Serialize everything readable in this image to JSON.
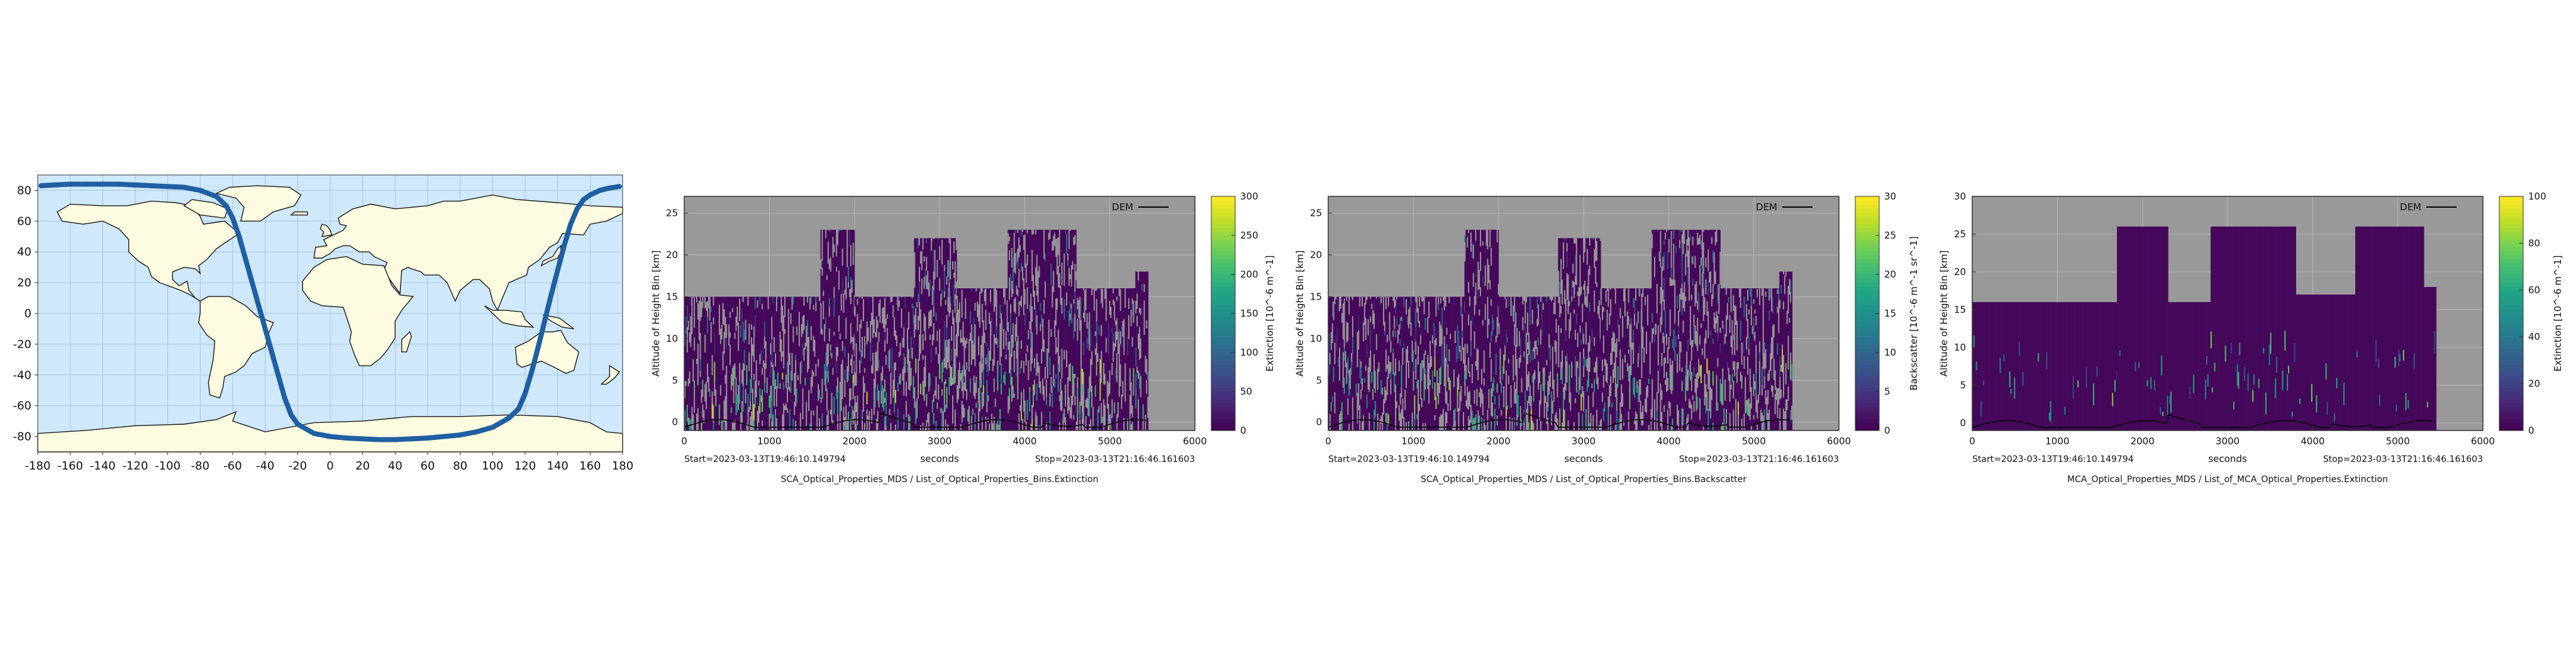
{
  "map": {
    "x_ticks": [
      "-180",
      "-160",
      "-140",
      "-120",
      "-100",
      "-80",
      "-60",
      "-40",
      "-20",
      "0",
      "20",
      "40",
      "60",
      "80",
      "100",
      "120",
      "140",
      "160",
      "180"
    ],
    "y_ticks": [
      "80",
      "60",
      "40",
      "20",
      "0",
      "-20",
      "-40",
      "-60",
      "-80"
    ],
    "colors": {
      "ocean": "#cfe8fb",
      "land": "#fdfbe0",
      "coast": "#1a1a1a",
      "track": "#1f5fa3",
      "grid": "#a8c4da"
    }
  },
  "plots": [
    {
      "ylabel": "Altitude of Height Bin [km]",
      "xlabel": "seconds",
      "start_text": "Start=2023-03-13T19:46:10.149794",
      "stop_text": "Stop=2023-03-13T21:16:46.161603",
      "title": "SCA_Optical_Properties_MDS / List_of_Optical_Properties_Bins.Extinction",
      "legend": "DEM",
      "cbar_label": "Extinction [10^-6 m^-1]",
      "x_ticks": [
        "0",
        "1000",
        "2000",
        "3000",
        "4000",
        "5000",
        "6000"
      ],
      "y_ticks": [
        "0",
        "5",
        "10",
        "15",
        "20",
        "25"
      ],
      "cbar_ticks": [
        "0",
        "50",
        "100",
        "150",
        "200",
        "250",
        "300"
      ]
    },
    {
      "ylabel": "Altitude of Height Bin [km]",
      "xlabel": "seconds",
      "start_text": "Start=2023-03-13T19:46:10.149794",
      "stop_text": "Stop=2023-03-13T21:16:46.161603",
      "title": "SCA_Optical_Properties_MDS / List_of_Optical_Properties_Bins.Backscatter",
      "legend": "DEM",
      "cbar_label": "Backscatter [10^-6 m^-1 sr^-1]",
      "x_ticks": [
        "0",
        "1000",
        "2000",
        "3000",
        "4000",
        "5000",
        "6000"
      ],
      "y_ticks": [
        "0",
        "5",
        "10",
        "15",
        "20",
        "25"
      ],
      "cbar_ticks": [
        "0",
        "5",
        "10",
        "15",
        "20",
        "25",
        "30"
      ]
    },
    {
      "ylabel": "Altitude of Height Bin [km]",
      "xlabel": "seconds",
      "start_text": "Start=2023-03-13T19:46:10.149794",
      "stop_text": "Stop=2023-03-13T21:16:46.161603",
      "title": "MCA_Optical_Properties_MDS / List_of_MCA_Optical_Properties.Extinction",
      "legend": "DEM",
      "cbar_label": "Extinction [10^-6 m^-1]",
      "x_ticks": [
        "0",
        "1000",
        "2000",
        "3000",
        "4000",
        "5000",
        "6000"
      ],
      "y_ticks": [
        "0",
        "5",
        "10",
        "15",
        "20",
        "25",
        "30"
      ],
      "cbar_ticks": [
        "0",
        "20",
        "40",
        "60",
        "80",
        "100"
      ]
    }
  ],
  "chart_data": [
    {
      "type": "scatter",
      "description_kind": "satellite ground track on world map",
      "xlim": [
        -180,
        180
      ],
      "ylim": [
        -90,
        90
      ],
      "x": [
        -178,
        -170,
        -160,
        -150,
        -140,
        -130,
        -120,
        -110,
        -100,
        -90,
        -80,
        -70,
        -64,
        -60,
        -56,
        -52,
        -48,
        -44,
        -40,
        -36,
        -32,
        -28,
        -24,
        -20,
        -10,
        0,
        10,
        20,
        30,
        40,
        50,
        60,
        70,
        80,
        90,
        100,
        110,
        116,
        120,
        124,
        128,
        132,
        136,
        140,
        144,
        148,
        152,
        156,
        160,
        166,
        172,
        178
      ],
      "y": [
        83,
        83.5,
        84,
        84,
        84,
        84,
        83.5,
        83,
        82.5,
        82,
        80,
        76,
        70,
        62,
        50,
        35,
        20,
        5,
        -10,
        -25,
        -40,
        -55,
        -66,
        -72,
        -78,
        -80,
        -81,
        -81.5,
        -82,
        -82,
        -81.5,
        -81,
        -80,
        -79,
        -77,
        -74,
        -68,
        -62,
        -52,
        -38,
        -22,
        -5,
        12,
        28,
        44,
        58,
        68,
        74,
        77,
        80,
        81.5,
        82.5
      ]
    },
    {
      "type": "heatmap",
      "xlim": [
        0,
        6000
      ],
      "ylim": [
        -1,
        27
      ],
      "clim": [
        0,
        300
      ],
      "colormap": "viridis",
      "background": "#999999",
      "segment_tops_km": [
        [
          0,
          1600,
          15
        ],
        [
          1600,
          2000,
          23
        ],
        [
          2000,
          2700,
          15
        ],
        [
          2700,
          3200,
          22
        ],
        [
          3200,
          3800,
          16
        ],
        [
          3800,
          4600,
          23
        ],
        [
          4600,
          5300,
          16
        ],
        [
          5300,
          5450,
          18
        ]
      ],
      "data_end_s": 5450
    },
    {
      "type": "heatmap",
      "xlim": [
        0,
        6000
      ],
      "ylim": [
        -1,
        27
      ],
      "clim": [
        0,
        30
      ],
      "colormap": "viridis",
      "background": "#999999",
      "segment_tops_km": [
        [
          0,
          1600,
          15
        ],
        [
          1600,
          2000,
          23
        ],
        [
          2000,
          2700,
          15
        ],
        [
          2700,
          3200,
          22
        ],
        [
          3200,
          3800,
          16
        ],
        [
          3800,
          4600,
          23
        ],
        [
          4600,
          5300,
          16
        ],
        [
          5300,
          5450,
          18
        ]
      ],
      "data_end_s": 5450
    },
    {
      "type": "heatmap",
      "xlim": [
        0,
        6000
      ],
      "ylim": [
        -1,
        30
      ],
      "clim": [
        0,
        100
      ],
      "colormap": "viridis",
      "background": "#999999",
      "segment_tops_km": [
        [
          0,
          900,
          16
        ],
        [
          900,
          1700,
          16
        ],
        [
          1700,
          2300,
          26
        ],
        [
          2300,
          2800,
          16
        ],
        [
          2800,
          3800,
          26
        ],
        [
          3800,
          4500,
          17
        ],
        [
          4500,
          5300,
          26
        ],
        [
          5300,
          5450,
          18
        ]
      ],
      "data_end_s": 5450
    }
  ]
}
